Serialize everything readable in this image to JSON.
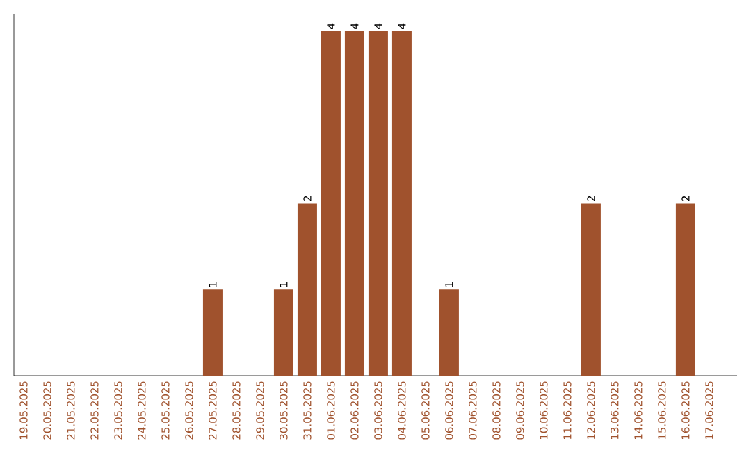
{
  "chart_data": {
    "type": "bar",
    "categories": [
      "19.05.2025",
      "20.05.2025",
      "21.05.2025",
      "22.05.2025",
      "23.05.2025",
      "24.05.2025",
      "25.05.2025",
      "26.05.2025",
      "27.05.2025",
      "28.05.2025",
      "29.05.2025",
      "30.05.2025",
      "31.05.2025",
      "01.06.2025",
      "02.06.2025",
      "03.06.2025",
      "04.06.2025",
      "05.06.2025",
      "06.06.2025",
      "07.06.2025",
      "08.06.2025",
      "09.06.2025",
      "10.06.2025",
      "11.06.2025",
      "12.06.2025",
      "13.06.2025",
      "14.06.2025",
      "15.06.2025",
      "16.06.2025",
      "17.06.2025"
    ],
    "values": [
      0,
      0,
      0,
      0,
      0,
      0,
      0,
      0,
      1,
      0,
      0,
      1,
      2,
      4,
      4,
      4,
      4,
      0,
      1,
      0,
      0,
      0,
      0,
      0,
      2,
      0,
      0,
      0,
      2,
      0
    ],
    "value_labels": [
      null,
      null,
      null,
      null,
      null,
      null,
      null,
      null,
      "1",
      null,
      null,
      "1",
      "2",
      "4",
      "4",
      "4",
      "4",
      null,
      "1",
      null,
      null,
      null,
      null,
      null,
      "2",
      null,
      null,
      null,
      "2",
      null
    ],
    "color": "#a0522d",
    "ylim": [
      0,
      4.2
    ],
    "tick_labels": "x"
  }
}
